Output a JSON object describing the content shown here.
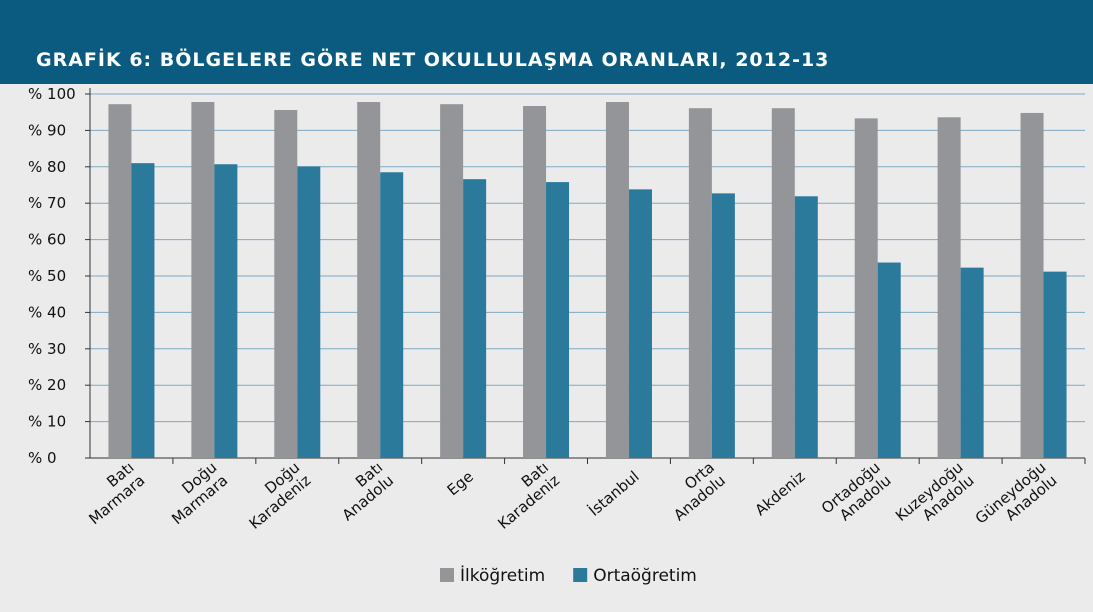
{
  "chart_data": {
    "type": "bar",
    "title": "GRAFİK 6: BÖLGELERE GÖRE NET OKULLULAŞMA ORANLARI, 2012-13",
    "categories": [
      [
        "Batı",
        "Marmara"
      ],
      [
        "Doğu",
        "Marmara"
      ],
      [
        "Doğu",
        "Karadeniz"
      ],
      [
        "Batı",
        "Anadolu"
      ],
      [
        "Ege"
      ],
      [
        "Batı",
        "Karadeniz"
      ],
      [
        "İstanbul"
      ],
      [
        "Orta",
        "Anadolu"
      ],
      [
        "Akdeniz"
      ],
      [
        "Ortadoğu",
        "Anadolu"
      ],
      [
        "Kuzeydoğu",
        "Anadolu"
      ],
      [
        "Güneydoğu",
        "Anadolu"
      ]
    ],
    "series": [
      {
        "name": "İlköğretim",
        "color": "#939598",
        "values": [
          97.2,
          97.8,
          95.6,
          97.8,
          97.2,
          96.7,
          97.8,
          96.1,
          96.1,
          93.3,
          93.6,
          94.8
        ]
      },
      {
        "name": "Ortaöğretim",
        "color": "#2b7a9c",
        "values": [
          81,
          80.7,
          80.1,
          78.5,
          76.6,
          75.8,
          73.8,
          72.7,
          71.9,
          53.7,
          52.3,
          51.2
        ]
      }
    ],
    "ylim": [
      0,
      100
    ],
    "yticks": [
      {
        "value": 0,
        "label": "% 0"
      },
      {
        "value": 10,
        "label": "% 10"
      },
      {
        "value": 20,
        "label": "% 20"
      },
      {
        "value": 30,
        "label": "% 30"
      },
      {
        "value": 40,
        "label": "% 40"
      },
      {
        "value": 50,
        "label": "% 50"
      },
      {
        "value": 60,
        "label": "% 60"
      },
      {
        "value": 70,
        "label": "% 70"
      },
      {
        "value": 80,
        "label": "% 80"
      },
      {
        "value": 90,
        "label": "% 90"
      },
      {
        "value": 100,
        "label": "% 100"
      }
    ],
    "grid": true,
    "legend": "bottom"
  }
}
